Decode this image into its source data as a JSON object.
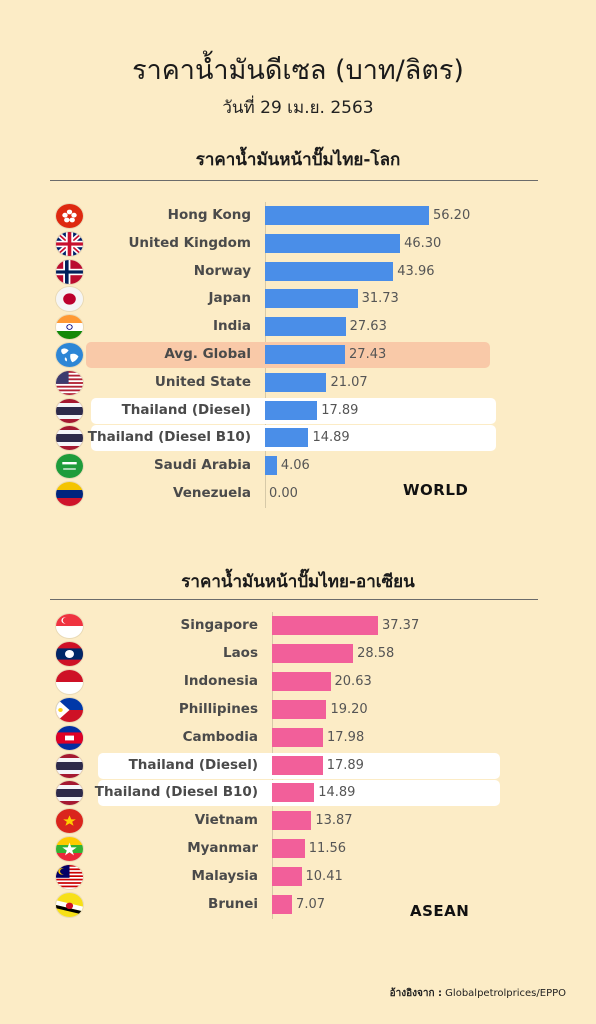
{
  "title": "ราคาน้ำมันดีเซล  (บาท/ลิตร)",
  "subtitle": "วันที่ 29 เม.ย. 2563",
  "source_prefix": "อ้างอิงจาก :",
  "source_text": "Globalpetrolprices/EPPO",
  "chart_data": [
    {
      "type": "bar",
      "orientation": "horizontal",
      "title": "ราคาน้ำมันหน้าปั๊มไทย-โลก",
      "tag": "WORLD",
      "bar_color": "#4a8ee8",
      "grid": false,
      "xlim": [
        0,
        56.2
      ],
      "categories": [
        "Hong Kong",
        "United Kingdom",
        "Norway",
        "Japan",
        "India",
        "Avg. Global",
        "United State",
        "Thailand (Diesel)",
        "Thailand (Diesel B10)",
        "Saudi Arabia",
        "Venezuela"
      ],
      "value_labels": [
        "56.20",
        "46.30",
        "43.96",
        "31.73",
        "27.63",
        "27.43",
        "21.07",
        "17.89",
        "14.89",
        "4.06",
        "0.00"
      ],
      "values": [
        56.2,
        46.3,
        43.96,
        31.73,
        27.63,
        27.43,
        21.07,
        17.89,
        14.89,
        4.06,
        0.0
      ],
      "flags": [
        "hongkong-flag-icon",
        "uk-flag-icon",
        "norway-flag-icon",
        "japan-flag-icon",
        "india-flag-icon",
        "globe-icon",
        "usa-flag-icon",
        "thailand-flag-icon",
        "thailand-flag-icon",
        "saudi-flag-icon",
        "venezuela-flag-icon"
      ],
      "highlights": [
        "none",
        "none",
        "none",
        "none",
        "none",
        "avg",
        "none",
        "thai",
        "thai",
        "none",
        "none"
      ]
    },
    {
      "type": "bar",
      "orientation": "horizontal",
      "title": "ราคาน้ำมันหน้าปั๊มไทย-อาเซียน",
      "tag": "ASEAN",
      "bar_color": "#f25f9a",
      "grid": false,
      "xlim": [
        0,
        37.37
      ],
      "categories": [
        "Singapore",
        "Laos",
        "Indonesia",
        "Phillipines",
        "Cambodia",
        "Thailand (Diesel)",
        "Thailand (Diesel B10)",
        "Vietnam",
        "Myanmar",
        "Malaysia",
        "Brunei"
      ],
      "value_labels": [
        "37.37",
        "28.58",
        "20.63",
        "19.20",
        "17.98",
        "17.89",
        "14.89",
        "13.87",
        "11.56",
        "10.41",
        "7.07"
      ],
      "values": [
        37.37,
        28.58,
        20.63,
        19.2,
        17.98,
        17.89,
        14.89,
        13.87,
        11.56,
        10.41,
        7.07
      ],
      "flags": [
        "singapore-flag-icon",
        "laos-flag-icon",
        "indonesia-flag-icon",
        "philippines-flag-icon",
        "cambodia-flag-icon",
        "thailand-flag-icon",
        "thailand-flag-icon",
        "vietnam-flag-icon",
        "myanmar-flag-icon",
        "malaysia-flag-icon",
        "brunei-flag-icon"
      ],
      "highlights": [
        "none",
        "none",
        "none",
        "none",
        "none",
        "thai",
        "thai",
        "none",
        "none",
        "none",
        "none"
      ]
    }
  ],
  "colors": {
    "background": "#fcecc6",
    "thai_highlight": "#ffffff",
    "avg_highlight": "#f9c9a8"
  }
}
